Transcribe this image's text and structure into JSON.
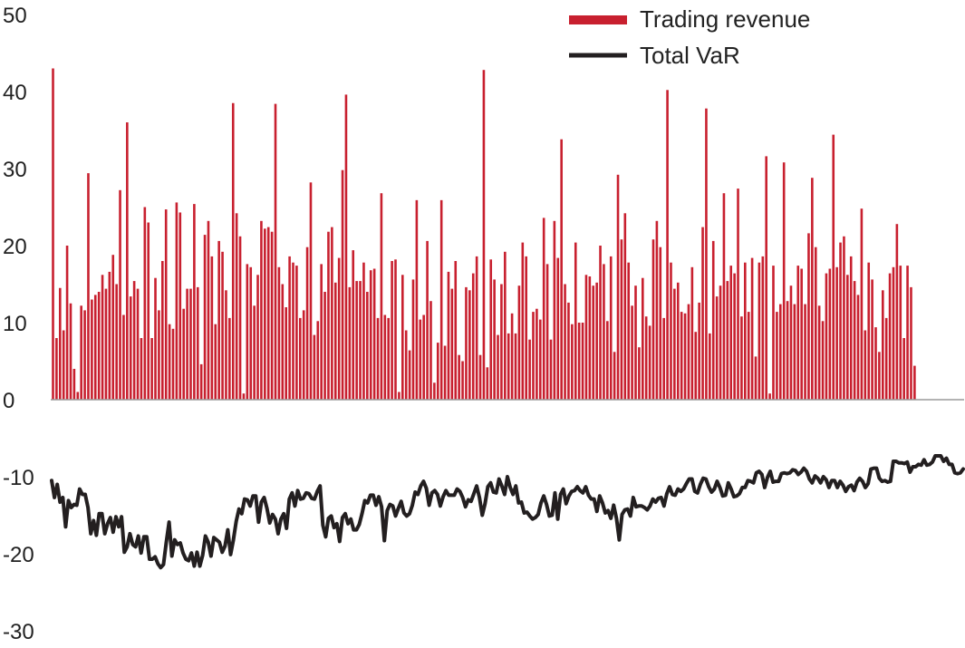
{
  "chart_data": {
    "type": "bar",
    "title": "",
    "xlabel": "",
    "ylabel": "",
    "ylim": [
      -30,
      50
    ],
    "yticks": [
      50,
      40,
      30,
      20,
      10,
      0,
      -10,
      -20,
      -30
    ],
    "grid": false,
    "legend_position": "top-right",
    "series": [
      {
        "name": "Trading revenue",
        "type": "bar",
        "color": "#c8202f",
        "values": [
          43,
          8,
          14.5,
          9,
          20,
          12.5,
          4,
          1,
          12.2,
          11.6,
          29.4,
          13,
          13.6,
          14,
          16.2,
          14.4,
          16.6,
          18.8,
          15,
          27.2,
          11,
          36,
          13.4,
          15.4,
          14.4,
          8,
          25,
          23,
          8,
          15.8,
          11.6,
          18,
          24.7,
          9.8,
          9.2,
          25.6,
          24.3,
          11.8,
          14.4,
          14.4,
          25.4,
          14.6,
          4.6,
          21.4,
          23.2,
          18.6,
          9.8,
          20.6,
          19.2,
          14.2,
          10.6,
          38.5,
          24.2,
          21.2,
          0.8,
          17.6,
          17.2,
          12.2,
          16.2,
          23.2,
          22.2,
          22.4,
          21.8,
          38.4,
          17.2,
          15,
          12,
          18.6,
          17.8,
          17.4,
          10.6,
          11.6,
          19.8,
          28.2,
          8.4,
          10.2,
          17.6,
          14,
          21.8,
          22.4,
          15.2,
          18.4,
          29.8,
          39.6,
          14.6,
          19.4,
          15.4,
          15.4,
          17.8,
          14,
          16.8,
          17,
          10.6,
          26.8,
          11,
          10.6,
          18,
          18.2,
          1,
          16.2,
          9,
          6.4,
          15.6,
          25.9,
          10.4,
          11,
          20.6,
          12.8,
          2.2,
          7.4,
          25.9,
          7,
          16.6,
          14.4,
          18,
          5.8,
          5,
          14.6,
          14.2,
          16.4,
          18.6,
          5.8,
          42.8,
          4.2,
          18.2,
          15.6,
          8.4,
          15,
          19.2,
          8.6,
          11.2,
          8.6,
          14.8,
          20.4,
          18.6,
          7.8,
          11.4,
          11.8,
          10.4,
          23.6,
          17.6,
          7.8,
          23.2,
          18.4,
          33.8,
          15,
          12.6,
          9.8,
          20.4,
          10,
          10,
          16.2,
          16,
          14.8,
          15.2,
          20,
          17.6,
          10.2,
          18.6,
          6.2,
          29.2,
          20.8,
          24.2,
          17.8,
          12.2,
          14.8,
          6.8,
          15.8,
          10.8,
          9.6,
          20.8,
          23.2,
          19.8,
          10.6,
          40.2,
          17.8,
          14.4,
          15.2,
          11.4,
          11.2,
          12.4,
          17.2,
          8.8,
          12.6,
          22.4,
          37.8,
          8.6,
          20.6,
          13.4,
          14.8,
          26.8,
          15.4,
          17.4,
          16.4,
          27.4,
          10.8,
          17.8,
          11.4,
          18.4,
          5.6,
          17.8,
          18.6,
          31.6,
          0.8,
          17.4,
          11.4,
          12.4,
          30.8,
          12.8,
          14.8,
          12.4,
          17.4,
          17,
          12.4,
          21.6,
          28.8,
          19.8,
          12.2,
          10.2,
          16.4,
          17,
          34.4,
          17.2,
          20.4,
          21.2,
          16.2,
          18.6,
          15.4,
          13.6,
          24.8,
          9,
          17.8,
          15.6,
          9.4,
          6.2,
          14.2,
          10.6,
          16.4,
          17.2,
          22.8,
          17.4,
          8,
          17.4,
          14.6,
          4.4
        ]
      },
      {
        "name": "Total VaR",
        "type": "line",
        "color": "#231f20",
        "values": [
          -10.5,
          -12.7,
          -11,
          -13.3,
          -12.7,
          -16.5,
          -13.1,
          -14,
          -13.6,
          -13.7,
          -11.6,
          -12.3,
          -12.3,
          -14,
          -17.4,
          -15.7,
          -17.6,
          -14.8,
          -14.8,
          -17.4,
          -16.1,
          -15.3,
          -17.2,
          -15.2,
          -16.5,
          -15.2,
          -19.8,
          -19.1,
          -17.4,
          -18.8,
          -19.1,
          -17.7,
          -19.9,
          -17.8,
          -17.8,
          -20.7,
          -20.7,
          -20.4,
          -21.3,
          -21.8,
          -21.4,
          -18.5,
          -15.9,
          -20.3,
          -18.2,
          -18.8,
          -18.6,
          -19.9,
          -20.7,
          -20.9,
          -19.9,
          -21.6,
          -19.8,
          -21.6,
          -20.2,
          -17.7,
          -18.5,
          -20.3,
          -17.9,
          -18.2,
          -18.5,
          -19.8,
          -19,
          -16.9,
          -20.1,
          -18.2,
          -15.8,
          -14.2,
          -14.8,
          -12.9,
          -13,
          -13.8,
          -12.5,
          -12.5,
          -15.9,
          -13.3,
          -12.7,
          -14.1,
          -16,
          -14.9,
          -15.5,
          -17.4,
          -15.5,
          -14.8,
          -16.7,
          -12.9,
          -12.1,
          -13.8,
          -11.8,
          -12.9,
          -12.8,
          -12.1,
          -12.2,
          -12.8,
          -12.9,
          -11.9,
          -11.2,
          -16.3,
          -17.8,
          -15.4,
          -15.1,
          -16.6,
          -16.1,
          -18.4,
          -15.3,
          -14.8,
          -16.1,
          -15.5,
          -16.9,
          -16.9,
          -16.2,
          -14.8,
          -13.1,
          -13.4,
          -12.4,
          -12.4,
          -13.7,
          -12.6,
          -13.9,
          -18.3,
          -14.4,
          -13.6,
          -13.8,
          -15.1,
          -14.1,
          -13.2,
          -14.7,
          -15.1,
          -14.8,
          -13.7,
          -12,
          -12.3,
          -11.2,
          -10.6,
          -11.5,
          -13.7,
          -12.1,
          -11.8,
          -12.3,
          -13.8,
          -12.6,
          -11.8,
          -12.4,
          -12.4,
          -12.4,
          -11.6,
          -11.9,
          -12.7,
          -13.9,
          -13,
          -13.2,
          -12.2,
          -11.2,
          -12.7,
          -15,
          -13.5,
          -11.3,
          -10.8,
          -12,
          -12.1,
          -10.3,
          -11.2,
          -12.3,
          -10,
          -11.4,
          -12.3,
          -11.2,
          -13.4,
          -13.3,
          -14.7,
          -14.6,
          -15.1,
          -15.5,
          -15.3,
          -14.9,
          -13.4,
          -12.5,
          -13.6,
          -15.1,
          -15,
          -12.1,
          -15.5,
          -12.3,
          -11.6,
          -13.5,
          -12.5,
          -11.9,
          -11.8,
          -11.3,
          -11.8,
          -12.1,
          -11.3,
          -12.4,
          -12.9,
          -12.9,
          -14.5,
          -12.5,
          -13.4,
          -14.7,
          -14.4,
          -15.4,
          -13.7,
          -15.4,
          -18.2,
          -14.9,
          -14.3,
          -14.2,
          -15.1,
          -12.7,
          -13.9,
          -13.8,
          -13.8,
          -14,
          -14.3,
          -13.8,
          -12.9,
          -13.3,
          -12.8,
          -12.7,
          -13.8,
          -12.2,
          -11.3,
          -12.3,
          -12.4,
          -11.6,
          -11.9,
          -11.6,
          -10.9,
          -10.3,
          -10.3,
          -11.9,
          -12.1,
          -11,
          -10.2,
          -10.3,
          -11.3,
          -12,
          -11.6,
          -10.6,
          -11.4,
          -12.5,
          -12.4,
          -10.8,
          -11.6,
          -12.6,
          -12.5,
          -12.2,
          -11.4,
          -11.4,
          -10.5,
          -10.6,
          -10.8,
          -9.5,
          -9.3,
          -9.7,
          -11.4,
          -10.1,
          -9.3,
          -10.7,
          -10.6,
          -10.6,
          -9.6,
          -9.5,
          -9.6,
          -9.5,
          -9.1,
          -9.2,
          -9.7,
          -9.4,
          -8.9,
          -9.3,
          -10.3,
          -10.8,
          -9.9,
          -10.2,
          -10.8,
          -10,
          -10.4,
          -11.4,
          -10.5,
          -10.5,
          -11.4,
          -10.6,
          -11.1,
          -11.9,
          -11.3,
          -11.1,
          -11.8,
          -10.7,
          -10.2,
          -10.6,
          -11.4,
          -10.9,
          -9,
          -8.9,
          -8.9,
          -10.2,
          -10.6,
          -10.5,
          -10.7,
          -10.6,
          -8,
          -8,
          -8.2,
          -8.2,
          -8.3,
          -8.1,
          -9.4,
          -8.7,
          -8.7,
          -8.4,
          -8.5,
          -7.8,
          -8.5,
          -8.4,
          -8.1,
          -7.3,
          -7.3,
          -7.3,
          -8,
          -7.6,
          -8.4,
          -8.4,
          -9.5,
          -9.6,
          -9.5,
          -9
        ]
      }
    ]
  }
}
